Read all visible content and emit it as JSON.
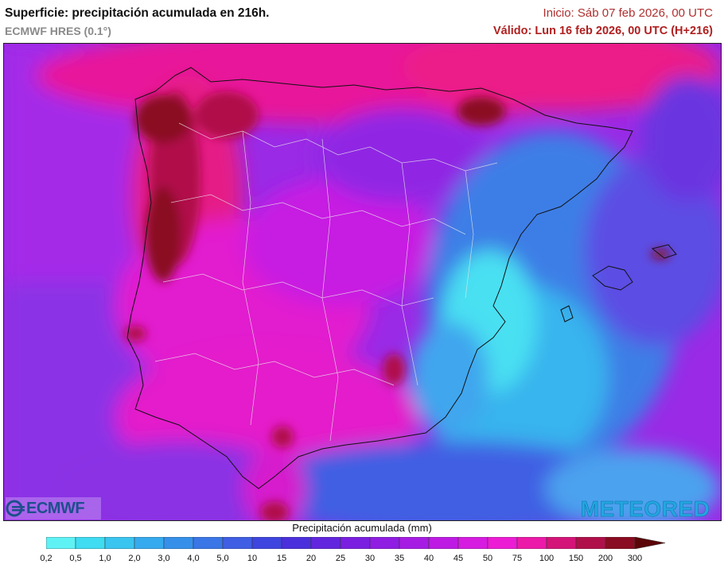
{
  "header": {
    "title": "Superficie: precipitación acumulada en 216h.",
    "model": "ECMWF HRES (0.1°)",
    "start": "Inicio: Sáb 07 feb 2026, 00 UTC",
    "valid": "Válido: Lun 16 feb 2026, 00 UTC (H+216)"
  },
  "logos": {
    "left": "ECMWF",
    "right": "METEORED"
  },
  "legend": {
    "title": "Precipitación acumulada (mm)",
    "levels": [
      "0,2",
      "0,5",
      "1,0",
      "2,0",
      "3,0",
      "4,0",
      "5,0",
      "10",
      "15",
      "20",
      "25",
      "30",
      "35",
      "40",
      "45",
      "50",
      "75",
      "100",
      "150",
      "200",
      "300"
    ],
    "colors": [
      "#5ff2f5",
      "#3fdcf2",
      "#3ac4f0",
      "#36aaee",
      "#3690ea",
      "#3a76e6",
      "#3f5ee3",
      "#3f45df",
      "#4a2fdc",
      "#6226de",
      "#7a1fe0",
      "#901de2",
      "#a61ce3",
      "#bd1be3",
      "#d61ce0",
      "#ec1cd4",
      "#ec1aa8",
      "#d41478",
      "#b0104a",
      "#8a0c22",
      "#5a0608"
    ]
  },
  "map": {
    "region": "Península Ibérica y Baleares"
  }
}
